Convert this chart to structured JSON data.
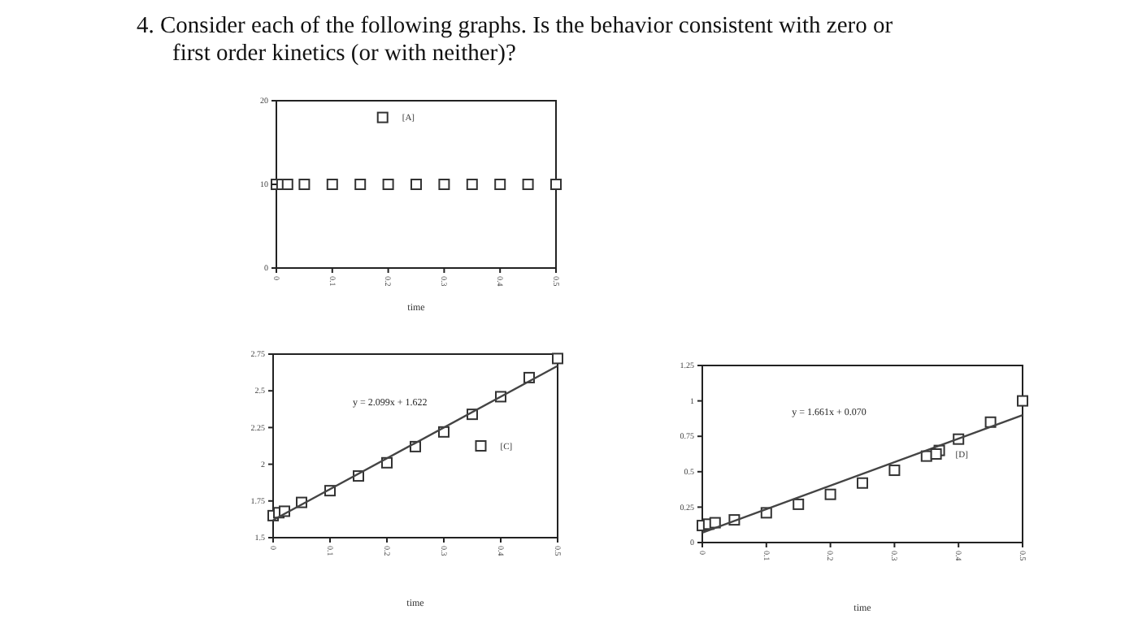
{
  "chart_data": [
    {
      "type": "scatter",
      "title": "4.   Consider each of the following graphs. Is the behavior consistent with zero or first order kinetics (or with neither)?",
      "xlabel": "time",
      "x": [
        0,
        0.01,
        0.02,
        0.05,
        0.1,
        0.15,
        0.2,
        0.25,
        0.3,
        0.35,
        0.4,
        0.45,
        0.5
      ],
      "series": [
        {
          "name": "[A]",
          "color": "#333333",
          "values": [
            10,
            10,
            10,
            10,
            10,
            10,
            10,
            10,
            10,
            10,
            10,
            10,
            10
          ]
        }
      ],
      "xlim": [
        0,
        0.5
      ],
      "xticks": [
        0,
        0.1,
        0.2,
        0.3,
        0.4,
        0.5
      ],
      "ylim": [
        0,
        20
      ],
      "yticks": [
        0,
        10,
        20
      ],
      "marker": "square",
      "legend": "top",
      "grid": false
    },
    {
      "type": "scatter",
      "xlabel": "time",
      "annotations": [
        "y = 2.099x + 1.622"
      ],
      "series": [
        {
          "name": "[C]",
          "color": "#333333",
          "x": [
            0,
            0.01,
            0.02,
            0.05,
            0.1,
            0.15,
            0.2,
            0.25,
            0.3,
            0.35,
            0.4,
            0.45,
            0.5
          ],
          "values": [
            1.65,
            1.67,
            1.68,
            1.74,
            1.82,
            1.92,
            2.01,
            2.12,
            2.22,
            2.34,
            2.46,
            2.59,
            2.72
          ]
        },
        {
          "type": "line",
          "marker": "none",
          "color": "#444444",
          "x": [
            0,
            0.5
          ],
          "values": [
            1.62,
            2.67
          ]
        }
      ],
      "xlim": [
        0,
        0.5
      ],
      "xticks": [
        0,
        0.1,
        0.2,
        0.3,
        0.4,
        0.5
      ],
      "ylim": [
        1.5,
        2.75
      ],
      "yticks": [
        1.5,
        1.75,
        2,
        2.25,
        2.5,
        2.75
      ],
      "marker": "square",
      "legend": "right",
      "grid": false
    },
    {
      "type": "scatter",
      "xlabel": "time",
      "annotations": [
        "y = 1.661x + 0.070"
      ],
      "series": [
        {
          "name": "[D]",
          "color": "#333333",
          "x": [
            0,
            0.01,
            0.02,
            0.05,
            0.1,
            0.15,
            0.2,
            0.25,
            0.3,
            0.35,
            0.37,
            0.4,
            0.45,
            0.5
          ],
          "values": [
            0.12,
            0.13,
            0.14,
            0.16,
            0.21,
            0.27,
            0.34,
            0.42,
            0.51,
            0.61,
            0.65,
            0.73,
            0.85,
            1.0
          ]
        },
        {
          "type": "line",
          "marker": "none",
          "color": "#444444",
          "x": [
            0,
            0.5
          ],
          "values": [
            0.07,
            0.9
          ]
        }
      ],
      "xlim": [
        0,
        0.5
      ],
      "xticks": [
        0,
        0.1,
        0.2,
        0.3,
        0.4,
        0.5
      ],
      "ylim": [
        0,
        1.25
      ],
      "yticks": [
        0,
        0.25,
        0.5,
        0.75,
        1,
        1.25
      ],
      "marker": "square",
      "legend": "right",
      "grid": false
    }
  ]
}
